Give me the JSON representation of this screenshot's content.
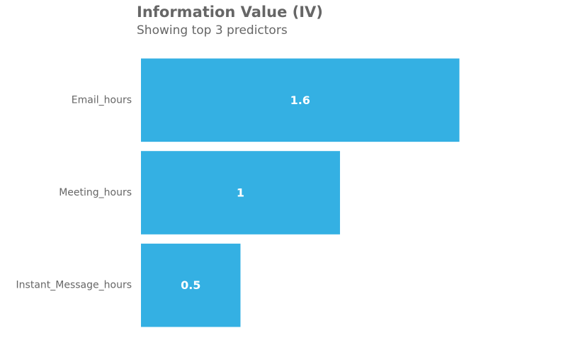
{
  "title": "Information Value (IV)",
  "subtitle": "Showing top 3 predictors",
  "colors": {
    "bar": "#34b0e3",
    "text": "#666666",
    "bar_label": "#ffffff"
  },
  "chart_data": {
    "type": "bar",
    "orientation": "horizontal",
    "title": "Information Value (IV)",
    "subtitle": "Showing top 3 predictors",
    "categories": [
      "Email_hours",
      "Meeting_hours",
      "Instant_Message_hours"
    ],
    "values": [
      1.6,
      1,
      0.5
    ],
    "value_labels": [
      "1.6",
      "1",
      "0.5"
    ],
    "xlim": [
      0,
      2.1
    ],
    "xlabel": "",
    "ylabel": "",
    "grid": false,
    "axes_visible": false
  }
}
